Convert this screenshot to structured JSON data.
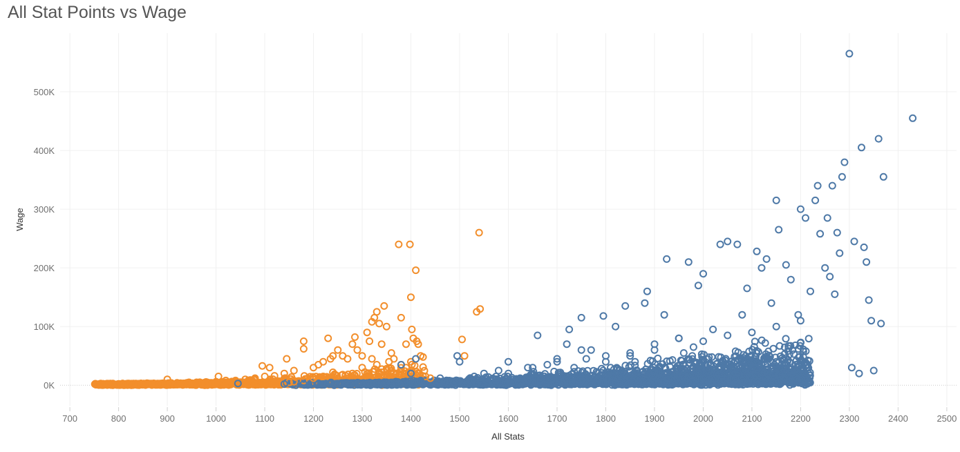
{
  "title": "All Stat Points vs Wage",
  "colors": {
    "orange": "#f28e2b",
    "blue": "#4e79a7",
    "grid": "#f0f0f0",
    "zero_line": "#c8c8c8"
  },
  "chart_data": {
    "type": "scatter",
    "title": "All Stat Points vs Wage",
    "xlabel": "All Stats",
    "ylabel": "Wage",
    "xlim": [
      680,
      2520
    ],
    "ylim": [
      -35000,
      600000
    ],
    "x_ticks": [
      700,
      800,
      900,
      1000,
      1100,
      1200,
      1300,
      1400,
      1500,
      1600,
      1700,
      1800,
      1900,
      2000,
      2100,
      2200,
      2300,
      2400,
      2500
    ],
    "y_ticks": [
      0,
      100000,
      200000,
      300000,
      400000,
      500000
    ],
    "y_tick_labels": [
      "0K",
      "100K",
      "200K",
      "300K",
      "400K",
      "500K"
    ],
    "grid": true,
    "marker": "hollow-circle",
    "series": [
      {
        "color": "#f28e2b",
        "x": [
          755,
          770,
          785,
          800,
          820,
          840,
          860,
          880,
          900,
          905,
          920,
          940,
          960,
          980,
          1000,
          1005,
          1020,
          1040,
          1060,
          1080,
          1095,
          1100,
          1110,
          1120,
          1140,
          1145,
          1160,
          1180,
          1180,
          1200,
          1210,
          1220,
          1230,
          1235,
          1240,
          1250,
          1260,
          1270,
          1280,
          1285,
          1290,
          1300,
          1310,
          1315,
          1320,
          1325,
          1330,
          1335,
          1340,
          1345,
          1350,
          1355,
          1360,
          1365,
          1375,
          1380,
          1390,
          1398,
          1400,
          1402,
          1405,
          1410,
          1412,
          1415,
          1420,
          1425,
          1430,
          1440,
          1505,
          1510,
          1535,
          1540,
          1542,
          1400,
          1390,
          1380,
          1370,
          1360,
          1350,
          1340,
          1330,
          1320,
          1300,
          1280,
          1260,
          1240,
          1220,
          1200,
          1180,
          1160,
          1150,
          1130,
          1120,
          1100
        ],
        "y": [
          1000,
          1000,
          1500,
          2000,
          2000,
          2500,
          3000,
          3000,
          10000,
          3500,
          4000,
          4000,
          5000,
          5000,
          6000,
          15000,
          8000,
          8000,
          10000,
          12000,
          33000,
          15000,
          30000,
          16000,
          20000,
          45000,
          25000,
          62000,
          75000,
          30000,
          35000,
          40000,
          80000,
          45000,
          50000,
          60000,
          50000,
          45000,
          70000,
          82000,
          60000,
          50000,
          90000,
          75000,
          108000,
          115000,
          125000,
          105000,
          70000,
          135000,
          100000,
          40000,
          55000,
          45000,
          240000,
          115000,
          70000,
          240000,
          150000,
          95000,
          80000,
          196000,
          75000,
          70000,
          50000,
          48000,
          15000,
          12000,
          78000,
          50000,
          125000,
          260000,
          130000,
          40000,
          30000,
          35000,
          20000,
          25000,
          28000,
          22000,
          35000,
          45000,
          30000,
          20000,
          18000,
          22000,
          15000,
          12000,
          8000,
          6000,
          5000,
          3000,
          2500,
          2000
        ]
      },
      {
        "color": "#4e79a7",
        "x": [
          1045,
          1140,
          1180,
          1250,
          1350,
          1380,
          1400,
          1410,
          1420,
          1460,
          1495,
          1500,
          1530,
          1550,
          1580,
          1600,
          1640,
          1660,
          1680,
          1700,
          1720,
          1725,
          1735,
          1750,
          1770,
          1795,
          1800,
          1820,
          1840,
          1850,
          1880,
          1885,
          1900,
          1920,
          1925,
          1950,
          1970,
          1990,
          2000,
          2035,
          2050,
          2070,
          2090,
          2110,
          2120,
          2130,
          2150,
          2155,
          2170,
          2180,
          2195,
          2200,
          2210,
          2220,
          2230,
          2235,
          2240,
          2250,
          2255,
          2260,
          2265,
          2270,
          2275,
          2280,
          2285,
          2290,
          2300,
          2305,
          2310,
          2320,
          2325,
          2330,
          2335,
          2340,
          2345,
          2350,
          2360,
          2365,
          2370,
          2430,
          1600,
          1650,
          1700,
          1750,
          1800,
          1850,
          1900,
          1950,
          2000,
          2050,
          2100,
          2150,
          2200,
          1980,
          2020,
          2080,
          2140,
          1960,
          1760,
          1860
        ],
        "y": [
          3000,
          2000,
          2000,
          3000,
          5000,
          35000,
          20000,
          45000,
          8000,
          12000,
          50000,
          40000,
          15000,
          20000,
          25000,
          40000,
          30000,
          85000,
          35000,
          40000,
          70000,
          95000,
          30000,
          115000,
          60000,
          118000,
          40000,
          100000,
          135000,
          50000,
          140000,
          160000,
          60000,
          120000,
          215000,
          80000,
          210000,
          170000,
          190000,
          240000,
          245000,
          240000,
          165000,
          228000,
          200000,
          215000,
          315000,
          265000,
          205000,
          180000,
          120000,
          300000,
          285000,
          160000,
          315000,
          340000,
          258000,
          200000,
          285000,
          185000,
          340000,
          155000,
          260000,
          225000,
          355000,
          380000,
          565000,
          30000,
          245000,
          20000,
          405000,
          235000,
          210000,
          145000,
          110000,
          25000,
          420000,
          105000,
          355000,
          455000,
          20000,
          30000,
          45000,
          60000,
          50000,
          55000,
          70000,
          80000,
          75000,
          85000,
          90000,
          100000,
          110000,
          65000,
          95000,
          120000,
          140000,
          55000,
          45000,
          40000
        ]
      }
    ]
  }
}
